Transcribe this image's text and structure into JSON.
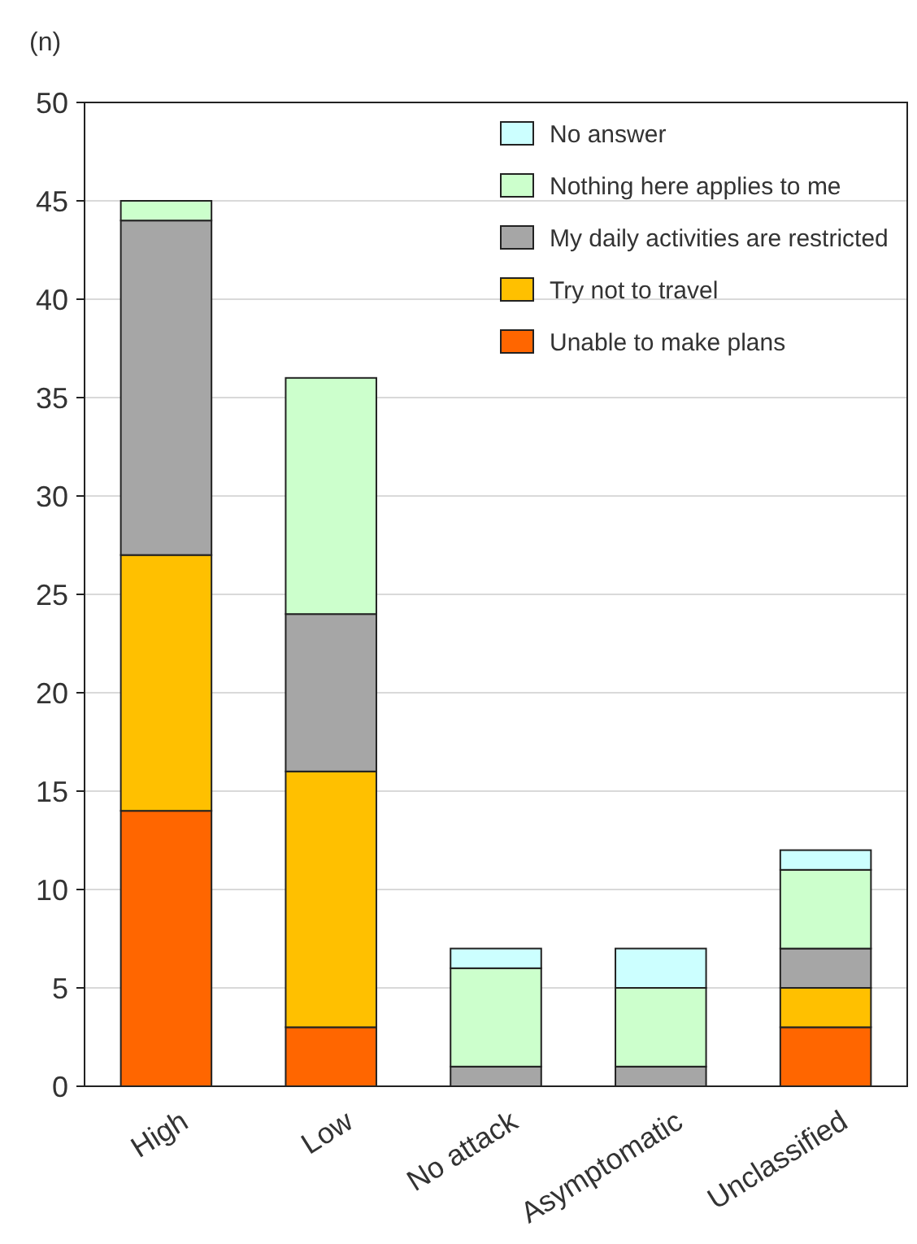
{
  "chart_data": {
    "type": "bar",
    "stacked": true,
    "ylabel": "(n)",
    "categories": [
      "High",
      "Low",
      "No attack",
      "Asymptomatic",
      "Unclassified"
    ],
    "series": [
      {
        "name": "Unable to make plans",
        "color": "#ff6600",
        "values": [
          14,
          3,
          0,
          0,
          3
        ]
      },
      {
        "name": "Try not to travel",
        "color": "#ffc000",
        "values": [
          13,
          13,
          0,
          0,
          2
        ]
      },
      {
        "name": "My daily activities are restricted",
        "color": "#a6a6a6",
        "values": [
          17,
          8,
          1,
          1,
          2
        ]
      },
      {
        "name": "Nothing here applies to me",
        "color": "#ccffcc",
        "values": [
          1,
          12,
          5,
          4,
          4
        ]
      },
      {
        "name": "No answer",
        "color": "#ccffff",
        "values": [
          0,
          0,
          1,
          2,
          1
        ]
      }
    ],
    "ylim": [
      0,
      50
    ],
    "yticks": [
      0,
      5,
      10,
      15,
      20,
      25,
      30,
      35,
      40,
      45,
      50
    ],
    "grid": "y",
    "legend": "top right"
  }
}
